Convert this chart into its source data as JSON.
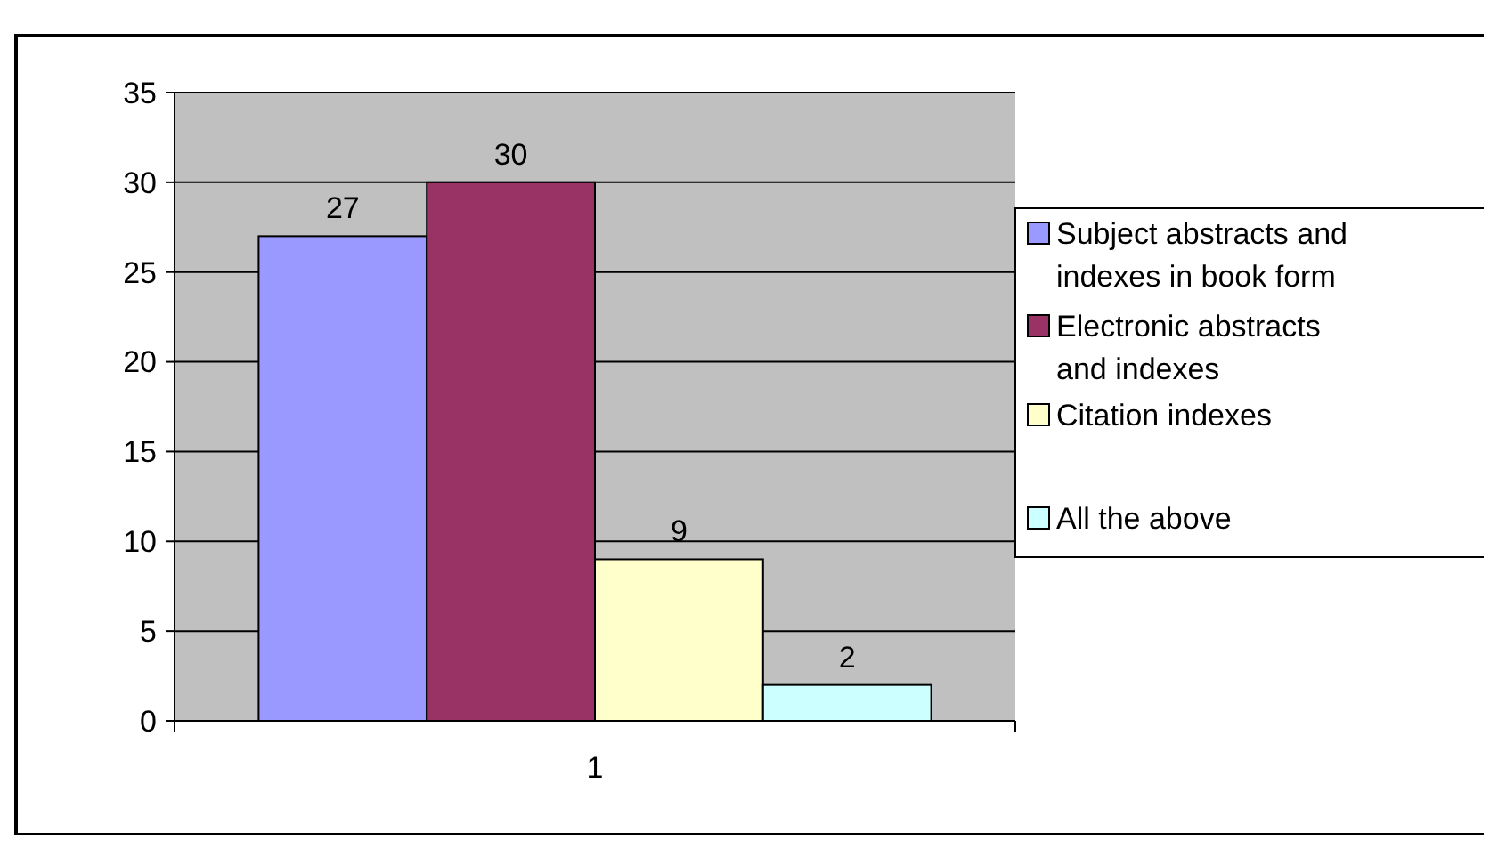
{
  "chart_data": {
    "type": "bar",
    "categories": [
      "1"
    ],
    "series": [
      {
        "name": "Subject abstracts and indexes in book form",
        "color": "#9999ff",
        "values": [
          27
        ]
      },
      {
        "name": "Electronic abstracts and indexes",
        "color": "#993366",
        "values": [
          30
        ]
      },
      {
        "name": "Citation indexes",
        "color": "#ffffcc",
        "values": [
          9
        ]
      },
      {
        "name": "All the above",
        "color": "#ccffff",
        "values": [
          2
        ]
      }
    ],
    "ylim": [
      0,
      35
    ],
    "yticks": [
      0,
      5,
      10,
      15,
      20,
      25,
      30,
      35
    ],
    "grid": "y",
    "legend": "right",
    "data_labels": true
  }
}
